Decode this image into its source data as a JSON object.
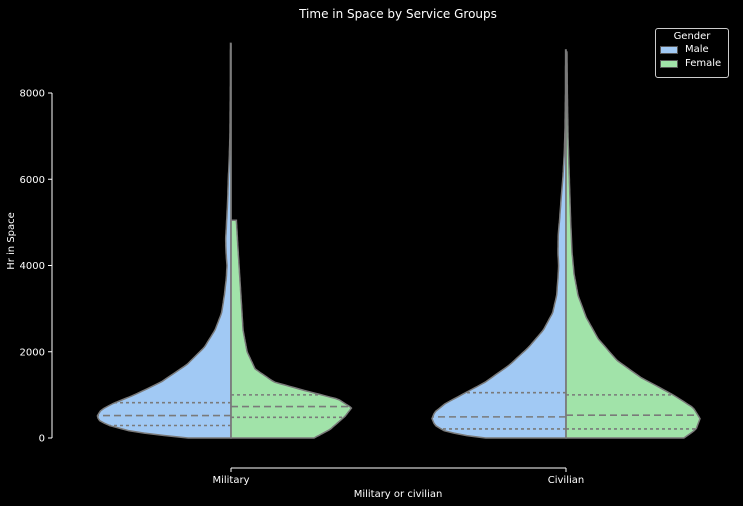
{
  "chart_data": {
    "type": "violin",
    "title": "Time in Space by Service Groups",
    "xlabel": "Military or civilian",
    "ylabel": "Hr in Space",
    "categories": [
      "Military",
      "Civilian"
    ],
    "ylim": [
      0,
      8000
    ],
    "yticks": [
      "0",
      "2000",
      "4000",
      "6000",
      "8000"
    ],
    "legend": {
      "title": "Gender",
      "placement": "top-right",
      "entries": [
        "Male",
        "Female"
      ]
    },
    "colors": {
      "Male": "#a1c9f4",
      "Female": "#a1e3a9",
      "outline": "#7a7a7a"
    },
    "split": true,
    "inner": "quartile",
    "series": [
      {
        "name": "Male",
        "groups": [
          {
            "category": "Military",
            "quartiles": [
              290,
              520,
              820
            ],
            "y_range": [
              0,
              9150
            ],
            "profile": [
              [
                0,
                0.32
              ],
              [
                50,
                0.48
              ],
              [
                150,
                0.74
              ],
              [
                300,
                0.92
              ],
              [
                400,
                0.98
              ],
              [
                500,
                1.0
              ],
              [
                650,
                0.97
              ],
              [
                800,
                0.88
              ],
              [
                1000,
                0.72
              ],
              [
                1300,
                0.52
              ],
              [
                1700,
                0.33
              ],
              [
                2100,
                0.2
              ],
              [
                2500,
                0.12
              ],
              [
                2900,
                0.07
              ],
              [
                3300,
                0.05
              ],
              [
                3700,
                0.035
              ],
              [
                4000,
                0.03
              ],
              [
                4300,
                0.037
              ],
              [
                4600,
                0.04
              ],
              [
                5000,
                0.033
              ],
              [
                5500,
                0.025
              ],
              [
                6000,
                0.02
              ],
              [
                6500,
                0.013
              ],
              [
                7000,
                0.008
              ],
              [
                8000,
                0.005
              ],
              [
                9150,
                0.004
              ]
            ]
          },
          {
            "category": "Civilian",
            "quartiles": [
              210,
              490,
              1050
            ],
            "y_range": [
              0,
              9000
            ],
            "profile": [
              [
                0,
                0.6
              ],
              [
                50,
                0.73
              ],
              [
                150,
                0.9
              ],
              [
                300,
                0.98
              ],
              [
                450,
                1.0
              ],
              [
                600,
                0.98
              ],
              [
                800,
                0.9
              ],
              [
                1000,
                0.78
              ],
              [
                1300,
                0.6
              ],
              [
                1700,
                0.42
              ],
              [
                2100,
                0.28
              ],
              [
                2500,
                0.17
              ],
              [
                2900,
                0.1
              ],
              [
                3300,
                0.07
              ],
              [
                3700,
                0.06
              ],
              [
                4000,
                0.055
              ],
              [
                4300,
                0.06
              ],
              [
                4700,
                0.058
              ],
              [
                5100,
                0.047
              ],
              [
                5600,
                0.035
              ],
              [
                6100,
                0.022
              ],
              [
                6600,
                0.013
              ],
              [
                7200,
                0.007
              ],
              [
                8000,
                0.004
              ],
              [
                9000,
                0.003
              ]
            ]
          }
        ]
      },
      {
        "name": "Female",
        "groups": [
          {
            "category": "Military",
            "quartiles": [
              480,
              730,
              1000
            ],
            "y_range": [
              0,
              5050
            ],
            "profile": [
              [
                0,
                0.62
              ],
              [
                200,
                0.74
              ],
              [
                500,
                0.85
              ],
              [
                700,
                0.9
              ],
              [
                900,
                0.8
              ],
              [
                1100,
                0.55
              ],
              [
                1300,
                0.32
              ],
              [
                1600,
                0.18
              ],
              [
                2000,
                0.12
              ],
              [
                2500,
                0.09
              ],
              [
                3000,
                0.08
              ],
              [
                3500,
                0.07
              ],
              [
                4000,
                0.06
              ],
              [
                4500,
                0.05
              ],
              [
                5050,
                0.04
              ]
            ]
          },
          {
            "category": "Civilian",
            "quartiles": [
              210,
              530,
              1000
            ],
            "y_range": [
              0,
              8950
            ],
            "profile": [
              [
                0,
                0.88
              ],
              [
                200,
                0.97
              ],
              [
                450,
                1.0
              ],
              [
                700,
                0.95
              ],
              [
                1000,
                0.8
              ],
              [
                1400,
                0.56
              ],
              [
                1800,
                0.38
              ],
              [
                2300,
                0.24
              ],
              [
                2800,
                0.15
              ],
              [
                3300,
                0.09
              ],
              [
                3800,
                0.06
              ],
              [
                4300,
                0.045
              ],
              [
                5000,
                0.035
              ],
              [
                6000,
                0.025
              ],
              [
                7000,
                0.015
              ],
              [
                8000,
                0.01
              ],
              [
                8950,
                0.007
              ]
            ]
          }
        ]
      }
    ]
  }
}
